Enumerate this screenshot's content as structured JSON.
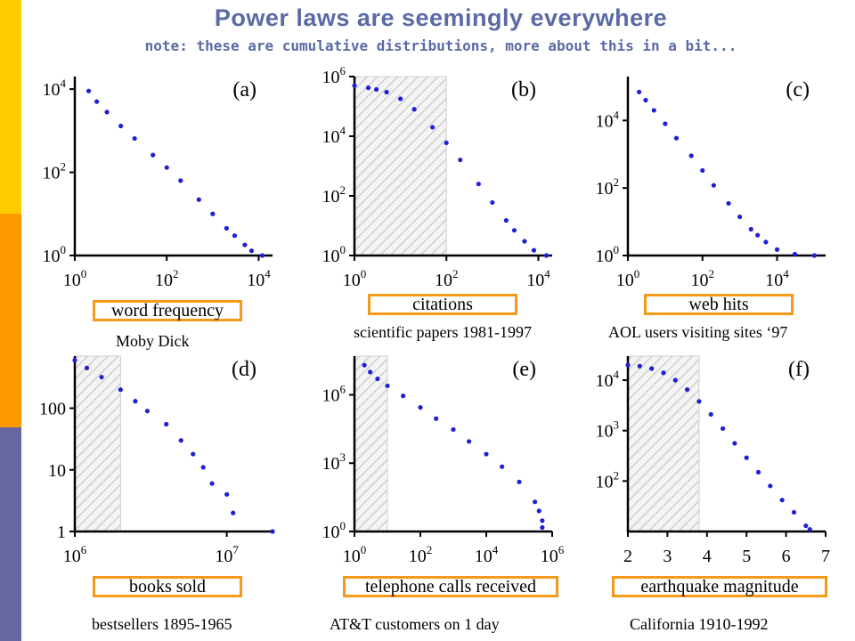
{
  "header": {
    "title": "Power laws are seemingly everywhere",
    "subtitle": "note: these are cumulative distributions, more about this in a bit..."
  },
  "colors": {
    "stripe_top": "#ffcc00",
    "stripe_mid": "#ff9900",
    "stripe_bottom": "#6666a0",
    "title": "#5b6aa5",
    "points": "#1f1fd6",
    "box_border": "#f39a1a"
  },
  "chart_data": [
    {
      "type": "scatter",
      "panel_label": "(a)",
      "xlabel": "word frequency",
      "caption": "Moby Dick",
      "x_scale": "log",
      "y_scale": "log",
      "xlim": [
        1,
        20000
      ],
      "ylim": [
        1,
        20000
      ],
      "shaded_region": null,
      "x_ticks": [
        {
          "v": 1,
          "base": "10",
          "exp": "0"
        },
        {
          "v": 100,
          "base": "10",
          "exp": "2"
        },
        {
          "v": 10000,
          "base": "10",
          "exp": "4"
        }
      ],
      "y_ticks": [
        {
          "v": 1,
          "base": "10",
          "exp": "0"
        },
        {
          "v": 100,
          "base": "10",
          "exp": "2"
        },
        {
          "v": 10000,
          "base": "10",
          "exp": "4"
        }
      ],
      "points": [
        [
          2,
          9000
        ],
        [
          3,
          5000
        ],
        [
          5,
          2800
        ],
        [
          10,
          1300
        ],
        [
          20,
          650
        ],
        [
          50,
          260
        ],
        [
          100,
          130
        ],
        [
          200,
          63
        ],
        [
          500,
          22
        ],
        [
          1000,
          10
        ],
        [
          2000,
          4.5
        ],
        [
          3000,
          3
        ],
        [
          5000,
          1.8
        ],
        [
          7000,
          1.3
        ],
        [
          12000,
          1
        ]
      ]
    },
    {
      "type": "scatter",
      "panel_label": "(b)",
      "xlabel": "citations",
      "caption": "scientific papers 1981-1997",
      "x_scale": "log",
      "y_scale": "log",
      "xlim": [
        1,
        20000
      ],
      "ylim": [
        1,
        1000000
      ],
      "shaded_region": [
        1,
        100
      ],
      "x_ticks": [
        {
          "v": 1,
          "base": "10",
          "exp": "0"
        },
        {
          "v": 100,
          "base": "10",
          "exp": "2"
        },
        {
          "v": 10000,
          "base": "10",
          "exp": "4"
        }
      ],
      "y_ticks": [
        {
          "v": 1,
          "base": "10",
          "exp": "0"
        },
        {
          "v": 100,
          "base": "10",
          "exp": "2"
        },
        {
          "v": 10000,
          "base": "10",
          "exp": "4"
        },
        {
          "v": 1000000,
          "base": "10",
          "exp": "6"
        }
      ],
      "points": [
        [
          1,
          500000
        ],
        [
          2,
          420000
        ],
        [
          3,
          370000
        ],
        [
          5,
          300000
        ],
        [
          10,
          180000
        ],
        [
          20,
          80000
        ],
        [
          50,
          20000
        ],
        [
          100,
          6000
        ],
        [
          200,
          1600
        ],
        [
          500,
          250
        ],
        [
          1000,
          60
        ],
        [
          2000,
          15
        ],
        [
          3000,
          7
        ],
        [
          5000,
          3
        ],
        [
          8000,
          1.5
        ],
        [
          15000,
          1
        ]
      ]
    },
    {
      "type": "scatter",
      "panel_label": "(c)",
      "xlabel": "web hits",
      "caption": "AOL users visiting sites ‘97",
      "x_scale": "log",
      "y_scale": "log",
      "xlim": [
        1,
        200000
      ],
      "ylim": [
        1,
        200000
      ],
      "shaded_region": null,
      "x_ticks": [
        {
          "v": 1,
          "base": "10",
          "exp": "0"
        },
        {
          "v": 100,
          "base": "10",
          "exp": "2"
        },
        {
          "v": 10000,
          "base": "10",
          "exp": "4"
        }
      ],
      "y_ticks": [
        {
          "v": 1,
          "base": "10",
          "exp": "0"
        },
        {
          "v": 100,
          "base": "10",
          "exp": "2"
        },
        {
          "v": 10000,
          "base": "10",
          "exp": "4"
        }
      ],
      "points": [
        [
          2,
          70000
        ],
        [
          3,
          40000
        ],
        [
          5,
          20000
        ],
        [
          10,
          8000
        ],
        [
          20,
          3000
        ],
        [
          50,
          900
        ],
        [
          100,
          330
        ],
        [
          200,
          120
        ],
        [
          500,
          35
        ],
        [
          1000,
          14
        ],
        [
          2000,
          6
        ],
        [
          3000,
          4
        ],
        [
          5000,
          2.5
        ],
        [
          10000,
          1.5
        ],
        [
          30000,
          1.1
        ],
        [
          100000,
          1
        ]
      ]
    },
    {
      "type": "scatter",
      "panel_label": "(d)",
      "xlabel": "books sold",
      "caption": "bestsellers 1895-1965",
      "x_scale": "log",
      "y_scale": "log",
      "xlim": [
        1000000,
        20000000
      ],
      "ylim": [
        1,
        700
      ],
      "shaded_region": [
        1000000,
        2000000
      ],
      "x_ticks": [
        {
          "v": 1000000,
          "base": "10",
          "exp": "6"
        },
        {
          "v": 10000000,
          "base": "10",
          "exp": "7"
        }
      ],
      "y_ticks": [
        {
          "v": 1,
          "label": "1"
        },
        {
          "v": 10,
          "label": "10"
        },
        {
          "v": 100,
          "label": "100"
        }
      ],
      "points": [
        [
          1000000,
          600
        ],
        [
          1200000,
          450
        ],
        [
          1500000,
          320
        ],
        [
          2000000,
          200
        ],
        [
          2500000,
          130
        ],
        [
          3000000,
          90
        ],
        [
          4000000,
          55
        ],
        [
          5000000,
          30
        ],
        [
          6000000,
          18
        ],
        [
          7000000,
          11
        ],
        [
          8000000,
          6
        ],
        [
          10000000,
          4
        ],
        [
          11000000,
          2
        ],
        [
          20000000,
          1
        ]
      ]
    },
    {
      "type": "scatter",
      "panel_label": "(e)",
      "xlabel": "telephone calls received",
      "caption": "AT&T customers on 1 day",
      "x_scale": "log",
      "y_scale": "log",
      "xlim": [
        1,
        1000000
      ],
      "ylim": [
        1,
        50000000
      ],
      "shaded_region": [
        1,
        10
      ],
      "x_ticks": [
        {
          "v": 1,
          "base": "10",
          "exp": "0"
        },
        {
          "v": 100,
          "base": "10",
          "exp": "2"
        },
        {
          "v": 10000,
          "base": "10",
          "exp": "4"
        },
        {
          "v": 1000000,
          "base": "10",
          "exp": "6"
        }
      ],
      "y_ticks": [
        {
          "v": 1,
          "base": "10",
          "exp": "0"
        },
        {
          "v": 1000,
          "base": "10",
          "exp": "3"
        },
        {
          "v": 1000000,
          "base": "10",
          "exp": "6"
        }
      ],
      "points": [
        [
          2,
          20000000
        ],
        [
          3,
          10000000
        ],
        [
          5,
          5000000
        ],
        [
          10,
          2500000
        ],
        [
          30,
          900000
        ],
        [
          100,
          280000
        ],
        [
          300,
          90000
        ],
        [
          1000,
          30000
        ],
        [
          3000,
          9000
        ],
        [
          10000,
          2500
        ],
        [
          30000,
          700
        ],
        [
          100000,
          150
        ],
        [
          300000,
          20
        ],
        [
          400000,
          8
        ],
        [
          500000,
          3
        ],
        [
          500000,
          1.5
        ]
      ]
    },
    {
      "type": "scatter",
      "panel_label": "(f)",
      "xlabel": "earthquake magnitude",
      "caption": "California 1910-1992",
      "x_scale": "linear",
      "y_scale": "log",
      "xlim": [
        2,
        7
      ],
      "ylim": [
        10,
        30000
      ],
      "shaded_region": [
        2,
        3.8
      ],
      "x_ticks": [
        {
          "v": 2,
          "label": "2"
        },
        {
          "v": 3,
          "label": "3"
        },
        {
          "v": 4,
          "label": "4"
        },
        {
          "v": 5,
          "label": "5"
        },
        {
          "v": 6,
          "label": "6"
        },
        {
          "v": 7,
          "label": "7"
        }
      ],
      "y_ticks": [
        {
          "v": 100,
          "base": "10",
          "exp": "2"
        },
        {
          "v": 1000,
          "base": "10",
          "exp": "3"
        },
        {
          "v": 10000,
          "base": "10",
          "exp": "4"
        }
      ],
      "points": [
        [
          2.0,
          20000
        ],
        [
          2.3,
          19000
        ],
        [
          2.6,
          17000
        ],
        [
          2.9,
          14000
        ],
        [
          3.2,
          10000
        ],
        [
          3.5,
          6500
        ],
        [
          3.8,
          3800
        ],
        [
          4.1,
          2100
        ],
        [
          4.4,
          1100
        ],
        [
          4.7,
          560
        ],
        [
          5.0,
          290
        ],
        [
          5.3,
          150
        ],
        [
          5.6,
          80
        ],
        [
          5.9,
          42
        ],
        [
          6.2,
          24
        ],
        [
          6.5,
          13
        ],
        [
          6.6,
          11
        ]
      ]
    }
  ]
}
